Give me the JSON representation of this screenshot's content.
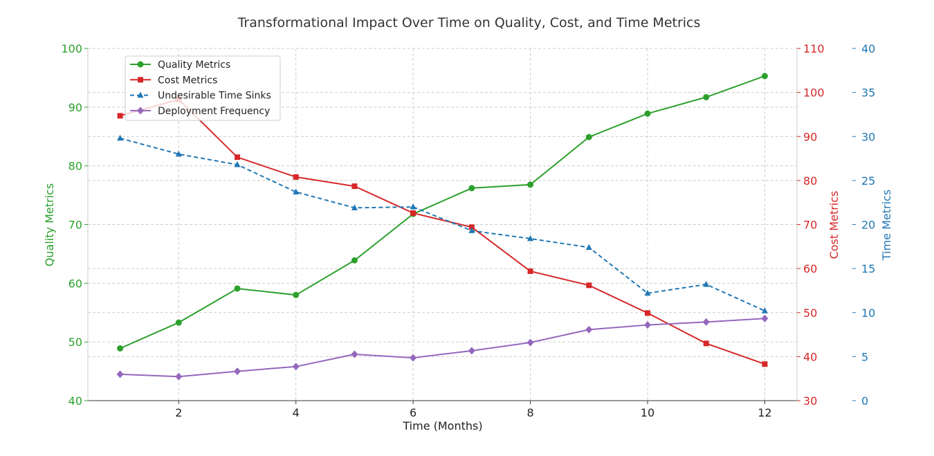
{
  "chart_data": {
    "type": "line",
    "title": "Transformational Impact Over Time on Quality, Cost, and Time Metrics",
    "xlabel": "Time (Months)",
    "x": [
      1,
      2,
      3,
      4,
      5,
      6,
      7,
      8,
      9,
      10,
      11,
      12
    ],
    "xlim": [
      0.45,
      12.55
    ],
    "xticks": [
      2,
      4,
      6,
      8,
      10,
      12
    ],
    "axes": {
      "left": {
        "label": "Quality Metrics",
        "ylim": [
          40,
          100
        ],
        "ticks": [
          40,
          50,
          60,
          70,
          80,
          90,
          100
        ],
        "color": "#2ca02c"
      },
      "right": {
        "label": "Cost Metrics",
        "ylim": [
          30,
          110
        ],
        "ticks": [
          30,
          40,
          50,
          60,
          70,
          80,
          90,
          100,
          110
        ],
        "color": "#d62728"
      },
      "right2": {
        "label": "Time Metrics",
        "ylim": [
          0,
          40
        ],
        "ticks": [
          0,
          5,
          10,
          15,
          20,
          25,
          30,
          35,
          40
        ],
        "color": "#1f77b4"
      }
    },
    "grid": true,
    "legend_position": "top-left",
    "series": [
      {
        "name": "Quality Metrics",
        "axis": "left",
        "color": "#2ca02c",
        "marker": "circle",
        "dash": false,
        "values": [
          48.9,
          53.3,
          59.1,
          58.0,
          63.9,
          71.8,
          76.2,
          76.8,
          84.9,
          88.9,
          91.7,
          95.3
        ]
      },
      {
        "name": "Cost Metrics",
        "axis": "right",
        "color": "#d62728",
        "marker": "square",
        "dash": false,
        "values": [
          94.7,
          98.4,
          85.3,
          80.8,
          78.7,
          72.6,
          69.4,
          59.4,
          56.2,
          49.9,
          43.0,
          38.3
        ]
      },
      {
        "name": "Undesirable Time Sinks",
        "axis": "right2",
        "color": "#1f77b4",
        "marker": "triangle",
        "dash": true,
        "values": [
          29.8,
          28.0,
          26.8,
          23.7,
          21.9,
          22.0,
          19.3,
          18.4,
          17.4,
          12.2,
          13.2,
          10.2
        ]
      },
      {
        "name": "Deployment Frequency",
        "axis": "left",
        "color": "#9467bd",
        "marker": "diamond",
        "dash": false,
        "values": [
          44.5,
          44.1,
          45.0,
          45.8,
          47.9,
          47.3,
          48.5,
          49.9,
          52.1,
          52.9,
          53.4,
          54.0
        ]
      }
    ]
  }
}
